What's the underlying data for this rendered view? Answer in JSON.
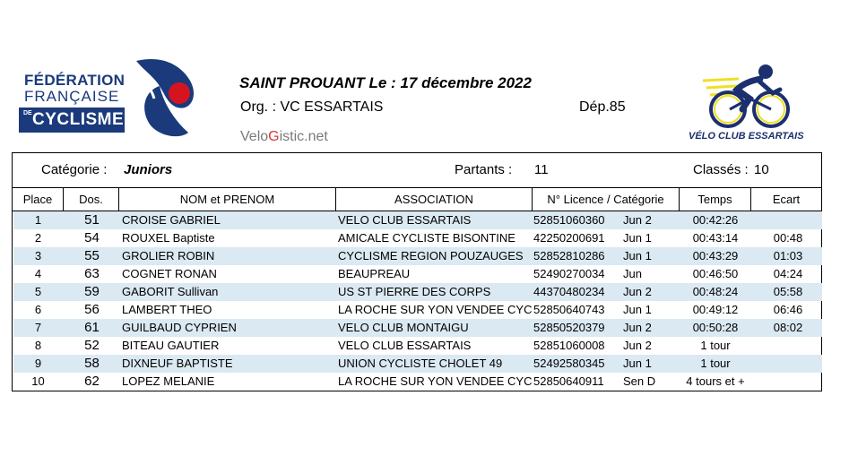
{
  "logo_ffc": {
    "line1": "FÉDÉRATION",
    "line2": "FRANÇAISE",
    "de": "DE",
    "line3": "CYCLISME"
  },
  "header": {
    "event": "SAINT PROUANT  Le :  17 décembre 2022",
    "org": "Org. :  VC ESSARTAIS",
    "dep": "Dép.85",
    "brand_a": "Velo",
    "brand_g": "G",
    "brand_b": "istic.net",
    "club_caption": "VÉLO CLUB ESSARTAIS"
  },
  "colors": {
    "ffc_blue": "#1a3a7c",
    "ffc_red": "#d4141e",
    "row_shade": "#dbe9f2",
    "club_yellow": "#f0e020",
    "club_navy": "#1c2f6e"
  },
  "meta": {
    "category_label": "Catégorie :",
    "category_value": "Juniors",
    "partants_label": "Partants :",
    "partants_value": "11",
    "classes_label": "Classés :",
    "classes_value": "10"
  },
  "columns": [
    "Place",
    "Dos.",
    "NOM et PRENOM",
    "ASSOCIATION",
    "N° Licence / Catégorie",
    "Temps",
    "Ecart"
  ],
  "rows": [
    {
      "place": "1",
      "dos": "51",
      "name": "CROISE   GABRIEL",
      "assoc": "VELO CLUB ESSARTAIS",
      "lic": "52851060360",
      "cat": "Jun 2",
      "time": "00:42:26",
      "gap": ""
    },
    {
      "place": "2",
      "dos": "54",
      "name": "ROUXEL   Baptiste",
      "assoc": "AMICALE CYCLISTE BISONTINE",
      "lic": "42250200691",
      "cat": "Jun 1",
      "time": "00:43:14",
      "gap": "00:48"
    },
    {
      "place": "3",
      "dos": "55",
      "name": "GROLIER   ROBIN",
      "assoc": "CYCLISME REGION POUZAUGES",
      "lic": "52852810286",
      "cat": "Jun 1",
      "time": "00:43:29",
      "gap": "01:03"
    },
    {
      "place": "4",
      "dos": "63",
      "name": "COGNET   RONAN",
      "assoc": "BEAUPREAU",
      "lic": "52490270034",
      "cat": "Jun",
      "time": "00:46:50",
      "gap": "04:24"
    },
    {
      "place": "5",
      "dos": "59",
      "name": "GABORIT   Sullivan",
      "assoc": "US ST PIERRE DES CORPS",
      "lic": "44370480234",
      "cat": "Jun 2",
      "time": "00:48:24",
      "gap": "05:58"
    },
    {
      "place": "6",
      "dos": "56",
      "name": "LAMBERT   THEO",
      "assoc": "LA ROCHE SUR YON VENDEE CYC",
      "lic": "52850640743",
      "cat": "Jun 1",
      "time": "00:49:12",
      "gap": "06:46"
    },
    {
      "place": "7",
      "dos": "61",
      "name": "GUILBAUD   CYPRIEN",
      "assoc": "VELO CLUB MONTAIGU",
      "lic": "52850520379",
      "cat": "Jun 2",
      "time": "00:50:28",
      "gap": "08:02"
    },
    {
      "place": "8",
      "dos": "52",
      "name": "BITEAU   GAUTIER",
      "assoc": "VELO CLUB ESSARTAIS",
      "lic": "52851060008",
      "cat": "Jun 2",
      "time": "1 tour",
      "gap": ""
    },
    {
      "place": "9",
      "dos": "58",
      "name": "DIXNEUF   BAPTISTE",
      "assoc": "UNION CYCLISTE CHOLET 49",
      "lic": "52492580345",
      "cat": "Jun 1",
      "time": "1 tour",
      "gap": ""
    },
    {
      "place": "10",
      "dos": "62",
      "name": "LOPEZ   MELANIE",
      "assoc": "LA ROCHE SUR YON VENDEE CYC",
      "lic": "52850640911",
      "cat": "Sen D",
      "time": "4 tours et +",
      "gap": ""
    }
  ]
}
